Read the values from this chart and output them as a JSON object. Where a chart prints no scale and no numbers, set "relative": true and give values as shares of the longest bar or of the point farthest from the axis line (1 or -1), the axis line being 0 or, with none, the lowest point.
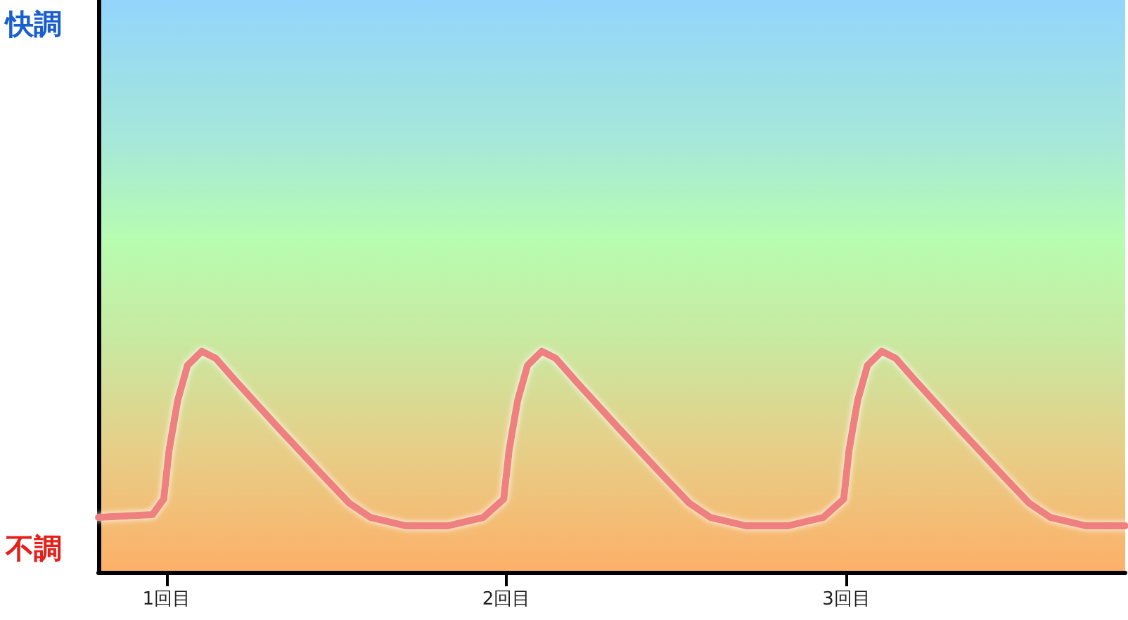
{
  "chart_data": {
    "type": "line",
    "relative": true,
    "grid": false,
    "marker": "none",
    "line_style": "solid",
    "tick_labels": "x",
    "annotations": [
      "快調",
      "不調"
    ],
    "xlim": [
      0.8,
      3.82
    ],
    "xticks": [
      {
        "value": 1,
        "label": "1回目"
      },
      {
        "value": 2,
        "label": "2回目"
      },
      {
        "value": 3,
        "label": "3回目"
      }
    ],
    "series": [
      {
        "color": "#ee8080",
        "x": [
          0.8,
          0.959,
          0.992,
          1.008,
          1.033,
          1.062,
          1.104,
          1.145,
          1.207,
          1.331,
          1.455,
          1.538,
          1.6,
          1.704,
          1.828,
          1.932,
          1.992,
          2.008,
          2.033,
          2.062,
          2.104,
          2.145,
          2.207,
          2.331,
          2.455,
          2.538,
          2.6,
          2.704,
          2.828,
          2.932,
          2.992,
          3.008,
          3.033,
          3.062,
          3.104,
          3.145,
          3.207,
          3.331,
          3.455,
          3.538,
          3.6,
          3.704,
          3.82
        ],
        "values": [
          0.248,
          0.261,
          0.331,
          0.554,
          0.777,
          0.936,
          1,
          0.968,
          0.86,
          0.65,
          0.446,
          0.312,
          0.248,
          0.21,
          0.21,
          0.248,
          0.331,
          0.554,
          0.777,
          0.936,
          1,
          0.968,
          0.86,
          0.65,
          0.446,
          0.312,
          0.248,
          0.21,
          0.21,
          0.248,
          0.331,
          0.554,
          0.777,
          0.936,
          1,
          0.968,
          0.86,
          0.65,
          0.446,
          0.312,
          0.248,
          0.21,
          0.21
        ]
      }
    ]
  }
}
